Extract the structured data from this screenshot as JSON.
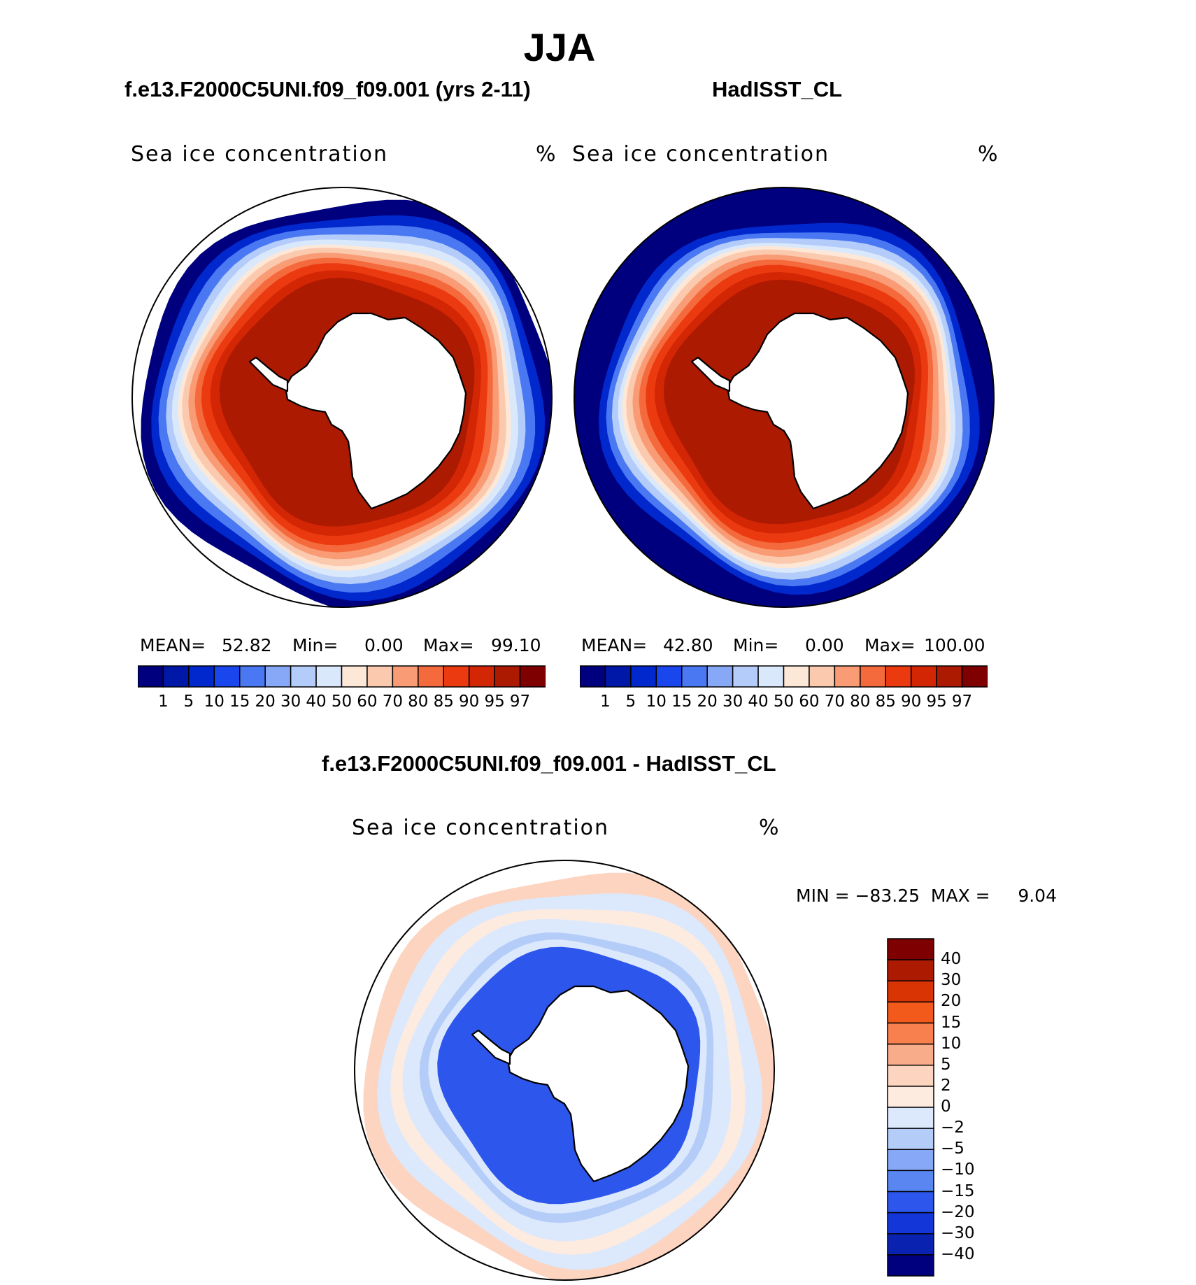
{
  "figure": {
    "season": "JJA"
  },
  "panels": [
    {
      "case_title": "f.e13.F2000C5UNI.f09_f09.001 (yrs 2-11)",
      "title": "Sea ice concentration",
      "units": "%",
      "mean_label": "MEAN=",
      "mean": "52.82",
      "min_label": "Min=",
      "min": "0.00",
      "max_label": "Max=",
      "max": "99.10"
    },
    {
      "case_title": "HadISST_CL",
      "title": "Sea ice concentration",
      "units": "%",
      "mean_label": "MEAN=",
      "mean": "42.80",
      "min_label": "Min=",
      "min": "0.00",
      "max_label": "Max=",
      "max": "100.00"
    }
  ],
  "diff_panel": {
    "case_title": "f.e13.F2000C5UNI.f09_f09.001 - HadISST_CL",
    "title": "Sea ice concentration",
    "units": "%",
    "minmax": "MIN = −83.25  MAX =     9.04"
  },
  "colorbar_top": {
    "labels": [
      "1",
      "5",
      "10",
      "15",
      "20",
      "30",
      "40",
      "50",
      "60",
      "70",
      "80",
      "85",
      "90",
      "95",
      "97"
    ],
    "colors": [
      "#00007f",
      "#0018a8",
      "#0028cc",
      "#1a46ee",
      "#4a78f2",
      "#86a8f6",
      "#b4ccfa",
      "#dae8fc",
      "#fde8d8",
      "#fbc9ae",
      "#f99c76",
      "#f56a3c",
      "#ec3a10",
      "#d32604",
      "#ad1a02",
      "#7f0000"
    ]
  },
  "colorbar_diff": {
    "labels": [
      "40",
      "30",
      "20",
      "15",
      "10",
      "5",
      "2",
      "0",
      "−2",
      "−5",
      "−10",
      "−15",
      "−20",
      "−30",
      "−40"
    ],
    "colors": [
      "#7f0000",
      "#ad1a02",
      "#d83404",
      "#f25a1c",
      "#f8804e",
      "#f8ac8a",
      "#fcd4c0",
      "#fdebe0",
      "#dce8fc",
      "#b4ccf8",
      "#86a8f6",
      "#5a86f2",
      "#2c56ec",
      "#1236d8",
      "#0a22b0",
      "#00007f"
    ]
  },
  "colors": {
    "ocean_open": "#00007f",
    "land": "#ffffff",
    "outline": "#000000"
  },
  "chart_data": [
    {
      "type": "heatmap",
      "title": "Sea ice concentration",
      "units": "%",
      "case": "f.e13.F2000C5UNI.f09_f09.001 (yrs 2-11)",
      "stats": {
        "mean": 52.82,
        "min": 0.0,
        "max": 99.1
      },
      "contour_levels": [
        1,
        5,
        10,
        15,
        20,
        30,
        40,
        50,
        60,
        70,
        80,
        85,
        90,
        95,
        97
      ]
    },
    {
      "type": "heatmap",
      "title": "Sea ice concentration",
      "units": "%",
      "case": "HadISST_CL",
      "stats": {
        "mean": 42.8,
        "min": 0.0,
        "max": 100.0
      },
      "contour_levels": [
        1,
        5,
        10,
        15,
        20,
        30,
        40,
        50,
        60,
        70,
        80,
        85,
        90,
        95,
        97
      ]
    },
    {
      "type": "heatmap",
      "title": "Sea ice concentration",
      "units": "%",
      "case": "f.e13.F2000C5UNI.f09_f09.001 - HadISST_CL",
      "stats": {
        "min": -83.25,
        "max": 9.04
      },
      "contour_levels": [
        -40,
        -30,
        -20,
        -15,
        -10,
        -5,
        -2,
        0,
        2,
        5,
        10,
        15,
        20,
        30,
        40
      ]
    }
  ]
}
